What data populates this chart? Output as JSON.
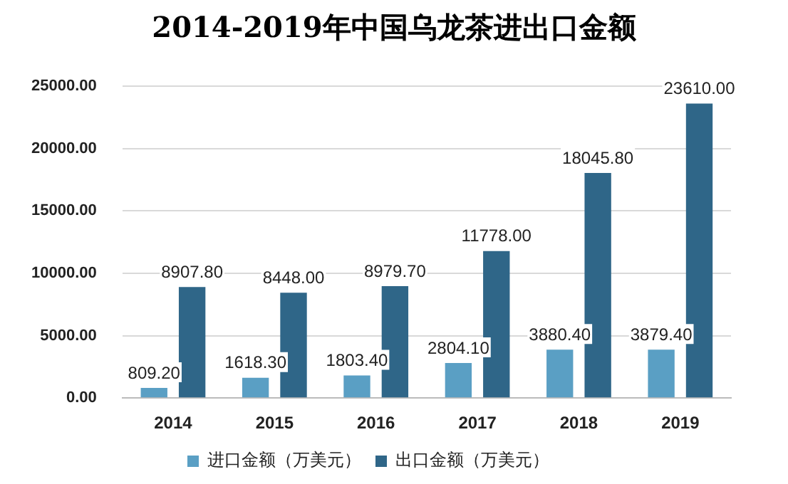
{
  "chart_data": {
    "type": "bar",
    "title": "2014-2019年中国乌龙茶进出口金额",
    "categories": [
      "2014",
      "2015",
      "2016",
      "2017",
      "2018",
      "2019"
    ],
    "series": [
      {
        "name": "进口金额（万美元）",
        "color": "#5a9fc4",
        "values": [
          809.2,
          1618.3,
          1803.4,
          2804.1,
          3880.4,
          3879.4
        ],
        "value_labels": [
          "809.20",
          "1618.30",
          "1803.40",
          "2804.10",
          "3880.40",
          "3879.40"
        ]
      },
      {
        "name": "出口金额（万美元）",
        "color": "#2f6688",
        "values": [
          8907.8,
          8448,
          8979.7,
          11778,
          18045.8,
          23610
        ],
        "value_labels": [
          "8907.80",
          "8448.00",
          "8979.70",
          "11778.00",
          "18045.80",
          "23610.00"
        ]
      }
    ],
    "ylim": [
      0,
      25000
    ],
    "yticks": [
      {
        "value": 0,
        "label": "0.00"
      },
      {
        "value": 5000,
        "label": "5000.00"
      },
      {
        "value": 10000,
        "label": "10000.00"
      },
      {
        "value": 15000,
        "label": "15000.00"
      },
      {
        "value": 20000,
        "label": "20000.00"
      },
      {
        "value": 25000,
        "label": "25000.00"
      }
    ],
    "grid": "y",
    "legend": "bottom"
  }
}
